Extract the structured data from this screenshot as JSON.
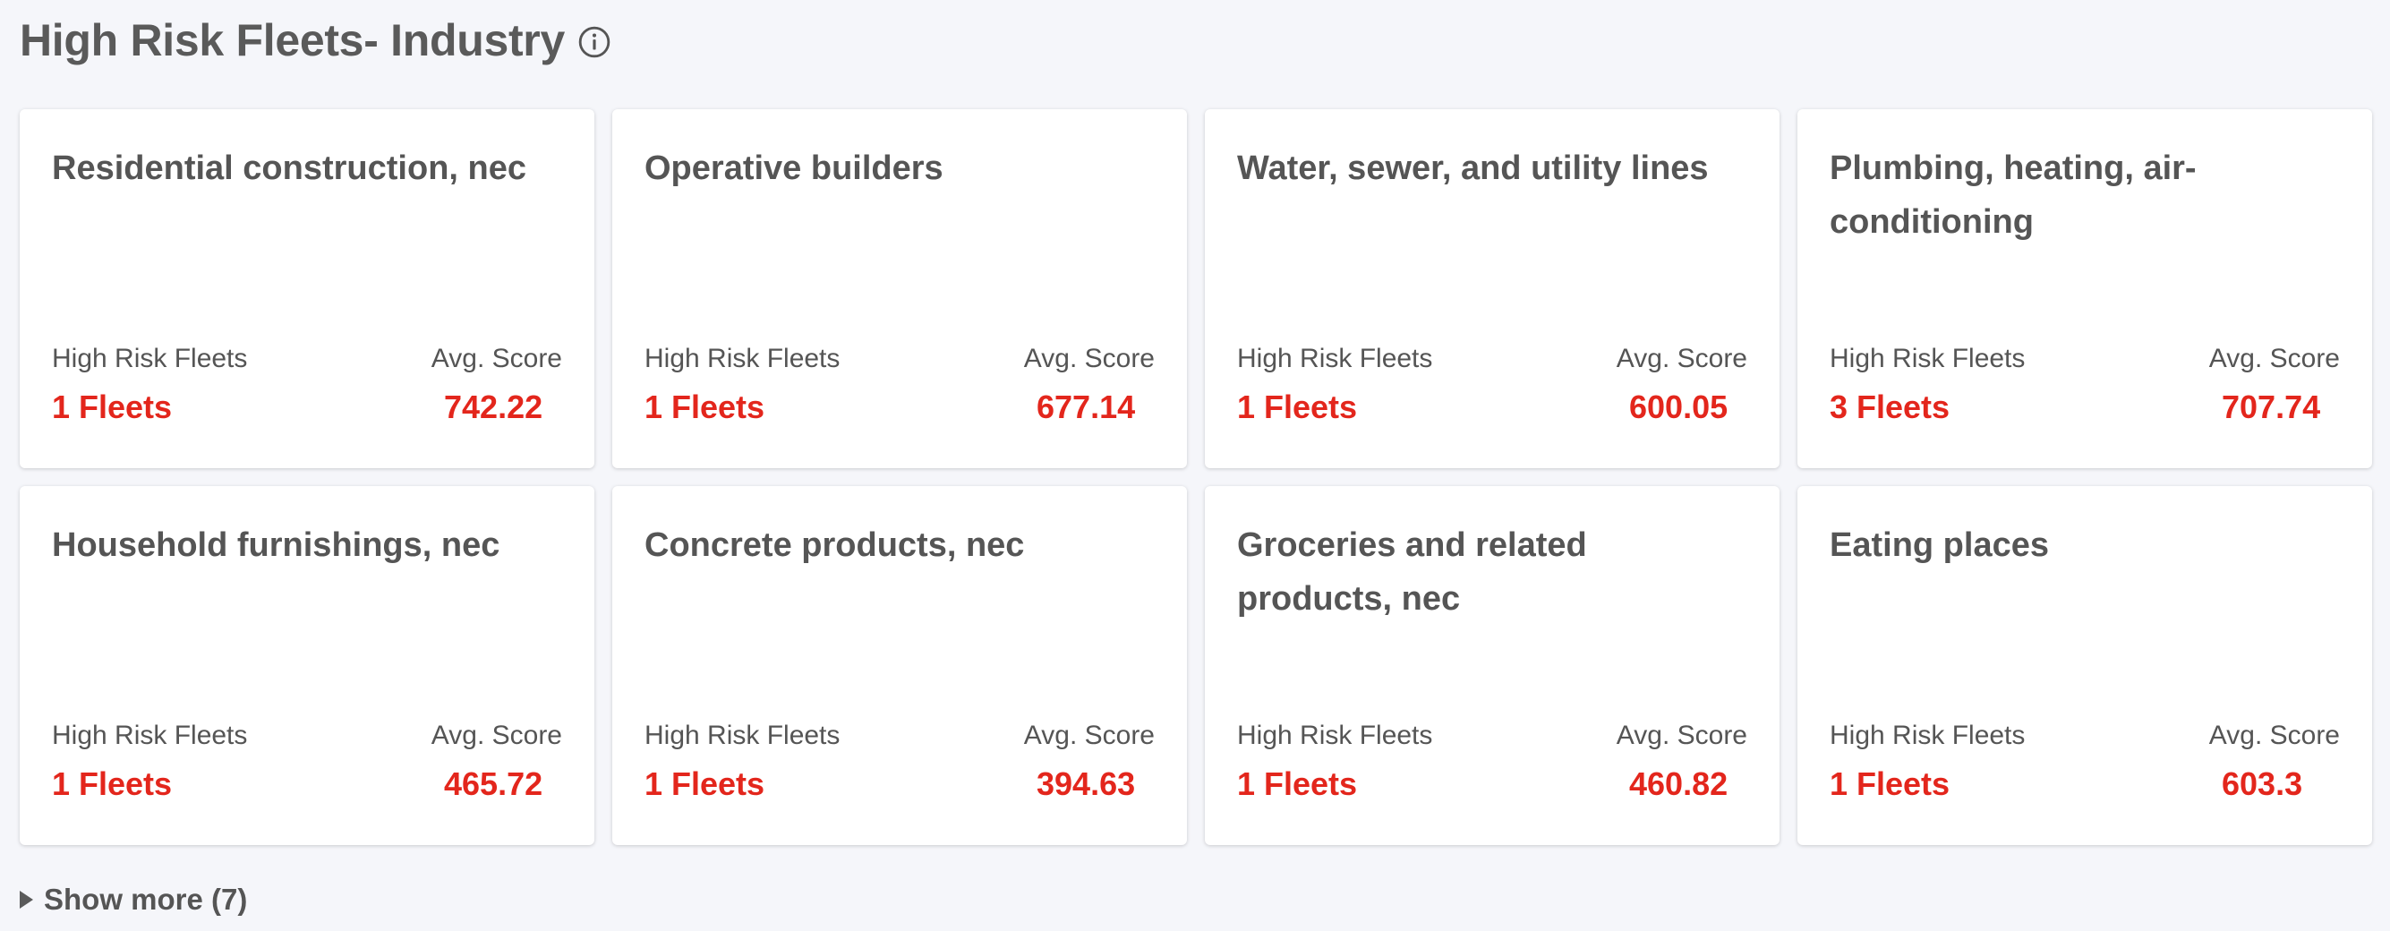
{
  "header": {
    "title": "High Risk Fleets- Industry",
    "info_icon": "info-circle-icon"
  },
  "cards": [
    {
      "title": "Residential construction, nec",
      "fleets_label": "High Risk Fleets",
      "fleets": "1 Fleets",
      "score_label": "Avg. Score",
      "score": "742.22"
    },
    {
      "title": "Operative builders",
      "fleets_label": "High Risk Fleets",
      "fleets": "1 Fleets",
      "score_label": "Avg. Score",
      "score": "677.14"
    },
    {
      "title": "Water, sewer, and utility lines",
      "fleets_label": "High Risk Fleets",
      "fleets": "1 Fleets",
      "score_label": "Avg. Score",
      "score": "600.05"
    },
    {
      "title": "Plumbing, heating, air-conditioning",
      "fleets_label": "High Risk Fleets",
      "fleets": "3 Fleets",
      "score_label": "Avg. Score",
      "score": "707.74"
    },
    {
      "title": "Household furnishings, nec",
      "fleets_label": "High Risk Fleets",
      "fleets": "1 Fleets",
      "score_label": "Avg. Score",
      "score": "465.72"
    },
    {
      "title": "Concrete products, nec",
      "fleets_label": "High Risk Fleets",
      "fleets": "1 Fleets",
      "score_label": "Avg. Score",
      "score": "394.63"
    },
    {
      "title": "Groceries and related products, nec",
      "fleets_label": "High Risk Fleets",
      "fleets": "1 Fleets",
      "score_label": "Avg. Score",
      "score": "460.82"
    },
    {
      "title": "Eating places",
      "fleets_label": "High Risk Fleets",
      "fleets": "1 Fleets",
      "score_label": "Avg. Score",
      "score": "603.3"
    }
  ],
  "show_more": {
    "label": "Show more (7)",
    "icon": "triangle-right-icon"
  },
  "colors": {
    "background": "#f5f6fa",
    "card": "#ffffff",
    "text": "#555555",
    "accent_red": "#e3261c"
  }
}
